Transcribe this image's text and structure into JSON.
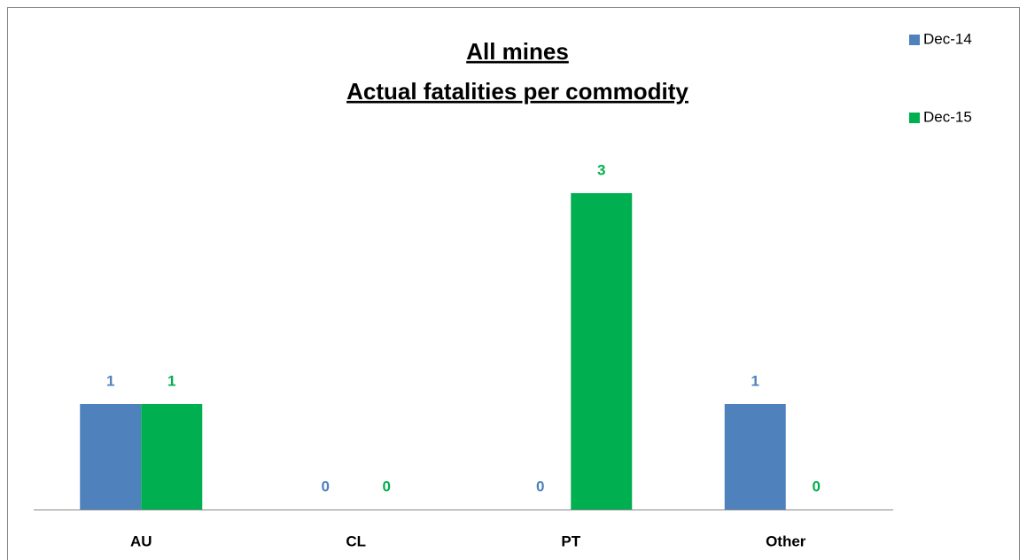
{
  "chart_data": {
    "type": "bar",
    "title": "All mines",
    "subtitle": "Actual fatalities per commodity",
    "categories": [
      "AU",
      "CL",
      "PT",
      "Other"
    ],
    "series": [
      {
        "name": "Dec-14",
        "color": "#4f81bd",
        "values": [
          1,
          0,
          0,
          1
        ]
      },
      {
        "name": "Dec-15",
        "color": "#00b050",
        "values": [
          1,
          0,
          3,
          0
        ]
      }
    ],
    "ylim": [
      0,
      3.5
    ],
    "legend": "right"
  }
}
